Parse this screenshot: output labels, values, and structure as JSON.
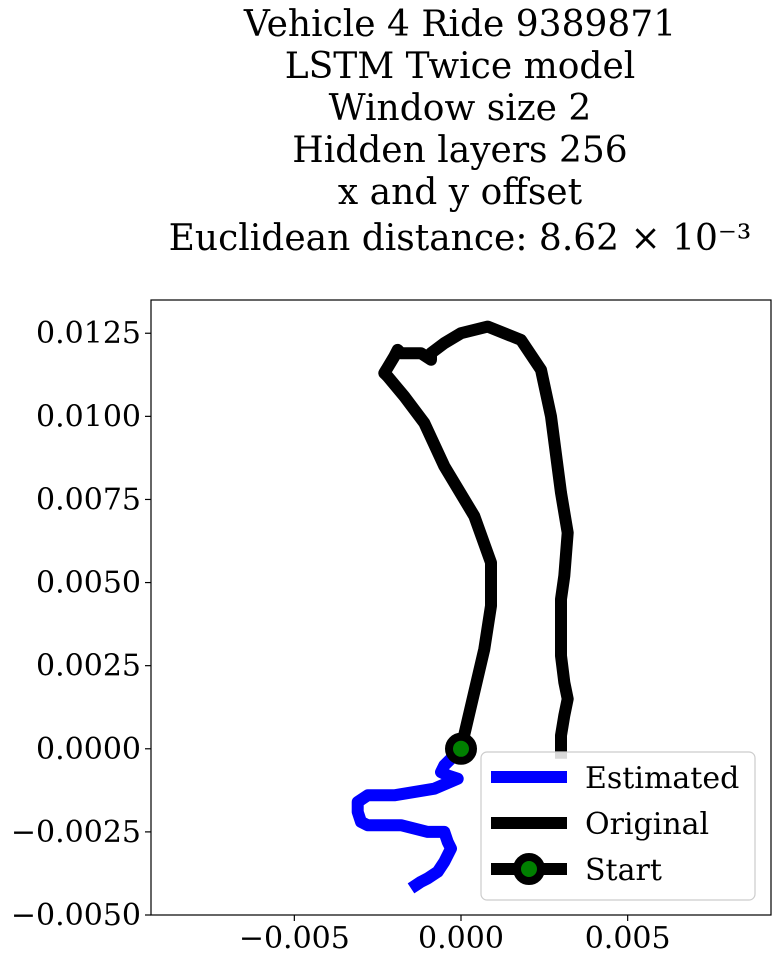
{
  "chart_data": {
    "type": "line",
    "title_lines": [
      "Vehicle 4 Ride 9389871",
      "LSTM Twice model",
      "Window size 2",
      "Hidden layers 256",
      "x and y offset",
      "Euclidean distance: 8.62 × 10⁻³"
    ],
    "xlim": [
      -0.0093,
      0.0093
    ],
    "ylim": [
      -0.005,
      0.0135
    ],
    "xticks": [
      -0.005,
      0.0,
      0.005
    ],
    "xtick_labels": [
      "−0.005",
      "0.000",
      "0.005"
    ],
    "yticks": [
      -0.005,
      -0.0025,
      0.0,
      0.0025,
      0.005,
      0.0075,
      0.01,
      0.0125
    ],
    "ytick_labels": [
      "−0.0050",
      "−0.0025",
      "0.0000",
      "0.0025",
      "0.0050",
      "0.0075",
      "0.0100",
      "0.0125"
    ],
    "grid": false,
    "legend_position": "bottom-right",
    "series": [
      {
        "name": "Original",
        "color": "#000000",
        "x": [
          0.0,
          0.0007,
          0.0009,
          0.0009,
          0.0009,
          0.0004,
          -0.0005,
          -0.0011,
          -0.0017,
          -0.0022,
          -0.0023,
          -0.002,
          -0.0019,
          -0.0018,
          -0.0012,
          -0.0009,
          -0.0009,
          -0.0005,
          0.0,
          0.0008,
          0.0018,
          0.0024,
          0.0027,
          0.003,
          0.0032,
          0.0031,
          0.003,
          0.003,
          0.0031,
          0.0032,
          0.0031,
          0.003,
          0.003
        ],
        "y": [
          0.0,
          0.003,
          0.0043,
          0.0049,
          0.0056,
          0.007,
          0.0085,
          0.0098,
          0.0106,
          0.0112,
          0.0113,
          0.0118,
          0.012,
          0.0119,
          0.0119,
          0.0117,
          0.0119,
          0.0122,
          0.0125,
          0.0127,
          0.0123,
          0.0114,
          0.01,
          0.0077,
          0.0065,
          0.0052,
          0.0045,
          0.0028,
          0.002,
          0.0015,
          0.001,
          0.0004,
          -0.0003
        ]
      },
      {
        "name": "Estimated",
        "color": "#0000ff",
        "x": [
          0.0,
          -0.0005,
          -0.0006,
          -0.0004,
          -0.0001,
          -0.0008,
          -0.002,
          -0.0028,
          -0.0031,
          -0.0031,
          -0.003,
          -0.0028,
          -0.0023,
          -0.0018,
          -0.001,
          -0.0005,
          -0.0004,
          -0.0003,
          -0.0005,
          -0.0007,
          -0.001,
          -0.0012,
          -0.0015
        ],
        "y": [
          0.0,
          -0.0005,
          -0.0007,
          -0.0008,
          -0.0009,
          -0.0012,
          -0.0014,
          -0.0014,
          -0.0016,
          -0.0019,
          -0.0022,
          -0.0023,
          -0.0023,
          -0.0023,
          -0.0025,
          -0.0025,
          -0.0028,
          -0.003,
          -0.0034,
          -0.0037,
          -0.0039,
          -0.004,
          -0.0042
        ]
      }
    ],
    "start_marker": {
      "name": "Start",
      "x": 0.0,
      "y": 0.0,
      "edge_color": "#000000",
      "fill_color": "#008000"
    },
    "legend": [
      {
        "label": "Estimated",
        "color": "#0000ff",
        "marker": false
      },
      {
        "label": "Original",
        "color": "#000000",
        "marker": false
      },
      {
        "label": "Start",
        "color": "#000000",
        "marker": true,
        "marker_fill": "#008000"
      }
    ]
  }
}
